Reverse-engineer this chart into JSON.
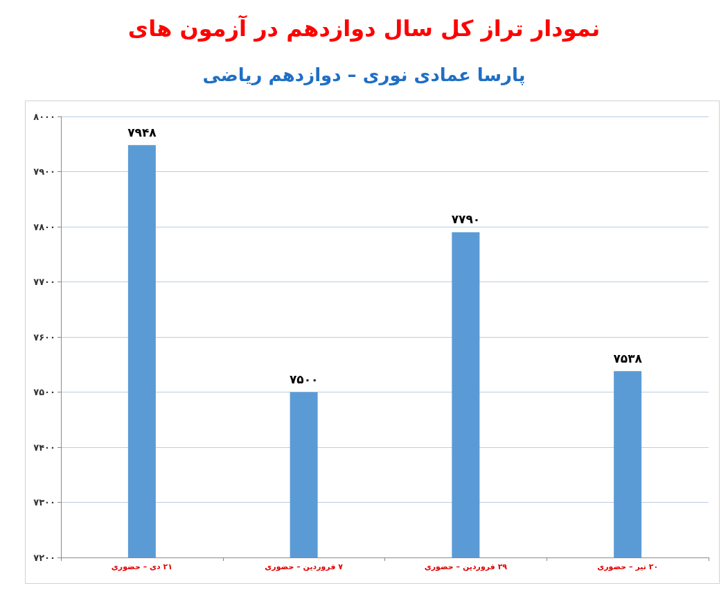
{
  "chart_data": {
    "type": "bar",
    "title": "نمودار تراز کل سال دوازدهم در آزمون های",
    "subtitle": "پارسا عمادی نوری – دوازدهم ریاضی",
    "categories": [
      "۲۱ دی – حضوری",
      "۷ فروردین – حضوری",
      "۲۹ فروردین – حضوری",
      "۲۰ تیر – حضوری"
    ],
    "values": [
      7948,
      7500,
      7790,
      7538
    ],
    "value_labels": [
      "۷۹۴۸",
      "۷۵۰۰",
      "۷۷۹۰",
      "۷۵۳۸"
    ],
    "color": "#5b9bd5",
    "ylim": [
      7200,
      8000
    ],
    "yticks": [
      {
        "value": 7200,
        "label": "۷۲۰۰"
      },
      {
        "value": 7300,
        "label": "۷۳۰۰"
      },
      {
        "value": 7400,
        "label": "۷۴۰۰"
      },
      {
        "value": 7500,
        "label": "۷۵۰۰"
      },
      {
        "value": 7600,
        "label": "۷۶۰۰"
      },
      {
        "value": 7700,
        "label": "۷۷۰۰"
      },
      {
        "value": 7800,
        "label": "۷۸۰۰"
      },
      {
        "value": 7900,
        "label": "۷۹۰۰"
      },
      {
        "value": 8000,
        "label": "۸۰۰۰"
      }
    ],
    "grid": "y"
  }
}
